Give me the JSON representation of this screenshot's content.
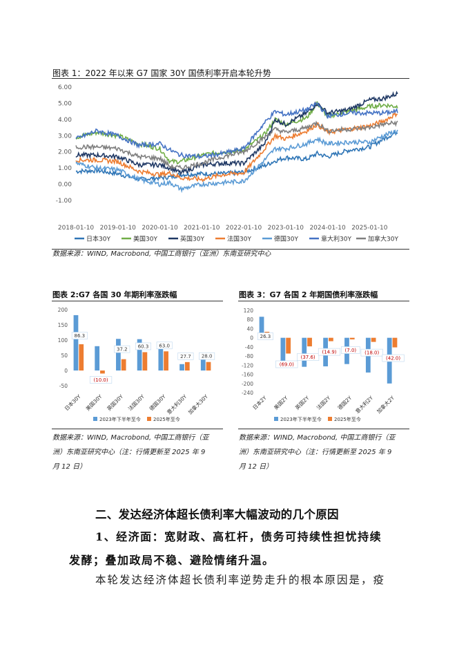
{
  "chart1": {
    "title": "图表 1：2022 年以来 G7 国家 30Y 国债利率开启本轮升势",
    "source": "数据来源：WIND, Macrobond, 中国工商银行（亚洲）东南亚研究中心"
  },
  "chart2": {
    "title": "图表 2:G7 各国 30 年期利率涨跌幅",
    "source_lines": [
      "数据来源：WIND, Macrobond, 中国工商银行（亚",
      "洲）东南亚研究中心（注：行情更新至 2025 年 9",
      "月 12 日）"
    ]
  },
  "chart3": {
    "title": "图表 3：G7 各国 2 年期国债利率涨跌幅",
    "source_lines": [
      "数据来源：WIND, Macrobond, 中国工商银行（亚",
      "洲）东南亚研究中心（注：行情更新至 2025 年 9",
      "月 12 日）"
    ]
  },
  "section_heading": "二、发达经济体超长债利率大幅波动的几个原因",
  "subheading_lines": [
    "1、经济面：宽财政、高杠杆，债务可持续性担忧持续",
    "发酵；叠加政局不稳、避险情绪升温。"
  ],
  "body_text": "本轮发达经济体超长债利率逆势走升的根本原因是，疫",
  "chart_data": [
    {
      "type": "line",
      "title": "",
      "xlabel": "",
      "ylabel": "",
      "ylim": [
        -1.0,
        6.0
      ],
      "yticks": [
        "-1.00",
        "0.00",
        "1.00",
        "2.00",
        "3.00",
        "4.00",
        "5.00",
        "6.00"
      ],
      "xticks": [
        "2018-01-10",
        "2019-01-10",
        "2020-01-10",
        "2021-01-10",
        "2022-01-10",
        "2023-01-10",
        "2024-01-10",
        "2025-01-10"
      ],
      "x": [
        "2018-01",
        "2018-07",
        "2019-01",
        "2019-07",
        "2020-01",
        "2020-04",
        "2020-07",
        "2021-01",
        "2021-07",
        "2022-01",
        "2022-07",
        "2022-10",
        "2023-01",
        "2023-07",
        "2023-10",
        "2024-01",
        "2024-07",
        "2025-01",
        "2025-05",
        "2025-09"
      ],
      "legend_position": "bottom",
      "series": [
        {
          "name": "日本30Y",
          "color": "#2e75b6",
          "values": [
            0.8,
            0.85,
            0.65,
            0.3,
            0.4,
            0.45,
            0.6,
            0.65,
            0.65,
            0.75,
            1.15,
            1.45,
            1.65,
            1.55,
            1.9,
            1.7,
            2.1,
            2.3,
            2.8,
            3.25
          ]
        },
        {
          "name": "美国30Y",
          "color": "#70ad47",
          "values": [
            2.9,
            3.2,
            3.0,
            2.5,
            2.2,
            1.4,
            1.4,
            1.8,
            2.0,
            2.1,
            3.1,
            4.0,
            3.7,
            4.1,
            5.0,
            4.2,
            4.5,
            4.8,
            4.9,
            4.8
          ]
        },
        {
          "name": "英国30Y",
          "color": "#1f3864",
          "values": [
            1.8,
            1.8,
            1.7,
            1.2,
            1.2,
            1.0,
            0.7,
            1.2,
            1.3,
            1.3,
            2.5,
            4.0,
            3.7,
            4.4,
            5.0,
            4.4,
            4.6,
            5.2,
            5.3,
            5.6
          ]
        },
        {
          "name": "法国30Y",
          "color": "#ed7d31",
          "values": [
            1.5,
            1.5,
            1.4,
            0.8,
            0.6,
            0.7,
            0.4,
            0.3,
            0.6,
            0.7,
            2.2,
            3.0,
            2.8,
            3.3,
            3.7,
            3.2,
            3.4,
            3.6,
            3.9,
            4.4
          ]
        },
        {
          "name": "德国30Y",
          "color": "#5b9bd5",
          "values": [
            1.3,
            1.0,
            0.9,
            0.3,
            0.0,
            0.1,
            -0.3,
            0.0,
            0.1,
            0.2,
            1.5,
            2.2,
            2.2,
            2.5,
            2.8,
            2.5,
            2.6,
            2.6,
            3.0,
            3.3
          ]
        },
        {
          "name": "意大利30Y",
          "color": "#4472c4",
          "values": [
            2.8,
            3.3,
            3.0,
            2.4,
            2.5,
            2.1,
            1.8,
            1.7,
            1.9,
            2.2,
            3.8,
            4.5,
            4.3,
            4.6,
            5.0,
            4.2,
            4.4,
            4.4,
            4.4,
            4.5
          ]
        },
        {
          "name": "加拿大30Y",
          "color": "#7f7f7f",
          "values": [
            2.3,
            2.3,
            2.2,
            1.7,
            1.6,
            1.1,
            1.0,
            1.3,
            1.7,
            2.0,
            2.9,
            3.4,
            3.2,
            3.5,
            3.8,
            3.3,
            3.4,
            3.5,
            3.7,
            3.8
          ]
        }
      ]
    },
    {
      "type": "bar",
      "title": "",
      "ylim": [
        -50,
        200
      ],
      "yticks": [
        "-50",
        "0",
        "50",
        "100",
        "150",
        "200"
      ],
      "categories": [
        "日本30Y",
        "美国30Y",
        "英国30Y",
        "法国30Y",
        "德国30Y",
        "意大利30Y",
        "加拿大30Y"
      ],
      "legend_position": "bottom",
      "series": [
        {
          "name": "2023年下半年至今",
          "color": "#5b9bd5",
          "values": [
            182,
            80,
            104,
            103,
            80,
            21,
            45
          ]
        },
        {
          "name": "2025年至今",
          "color": "#ed7d31",
          "values": [
            86.3,
            -10.0,
            37.2,
            60.3,
            63.0,
            27.7,
            28.0
          ]
        }
      ],
      "data_labels": [
        "86.3",
        "(10.0)",
        "37.2",
        "60.3",
        "63.0",
        "27.7",
        "28.0"
      ]
    },
    {
      "type": "bar",
      "title": "",
      "ylim": [
        -240,
        120
      ],
      "yticks": [
        "-240",
        "-200",
        "-160",
        "-120",
        "-80",
        "-40",
        "0",
        "40",
        "80",
        "120"
      ],
      "categories": [
        "日本2Y",
        "美国2Y",
        "英国2Y",
        "法国2Y",
        "德国2Y",
        "意大利2Y",
        "加拿大2Y"
      ],
      "legend_position": "bottom",
      "series": [
        {
          "name": "2023年下半年至今",
          "color": "#5b9bd5",
          "values": [
            92,
            -130,
            -127,
            -125,
            -115,
            -152,
            -200
          ]
        },
        {
          "name": "2025年至今",
          "color": "#ed7d31",
          "values": [
            26.3,
            -69.0,
            -37.6,
            -14.9,
            -7.0,
            -18.0,
            -42.0
          ]
        }
      ],
      "data_labels": [
        "26.3",
        "(69.0)",
        "(37.6)",
        "(14.9)",
        "(7.0)",
        "(18.0)",
        "(42.0)"
      ]
    }
  ]
}
